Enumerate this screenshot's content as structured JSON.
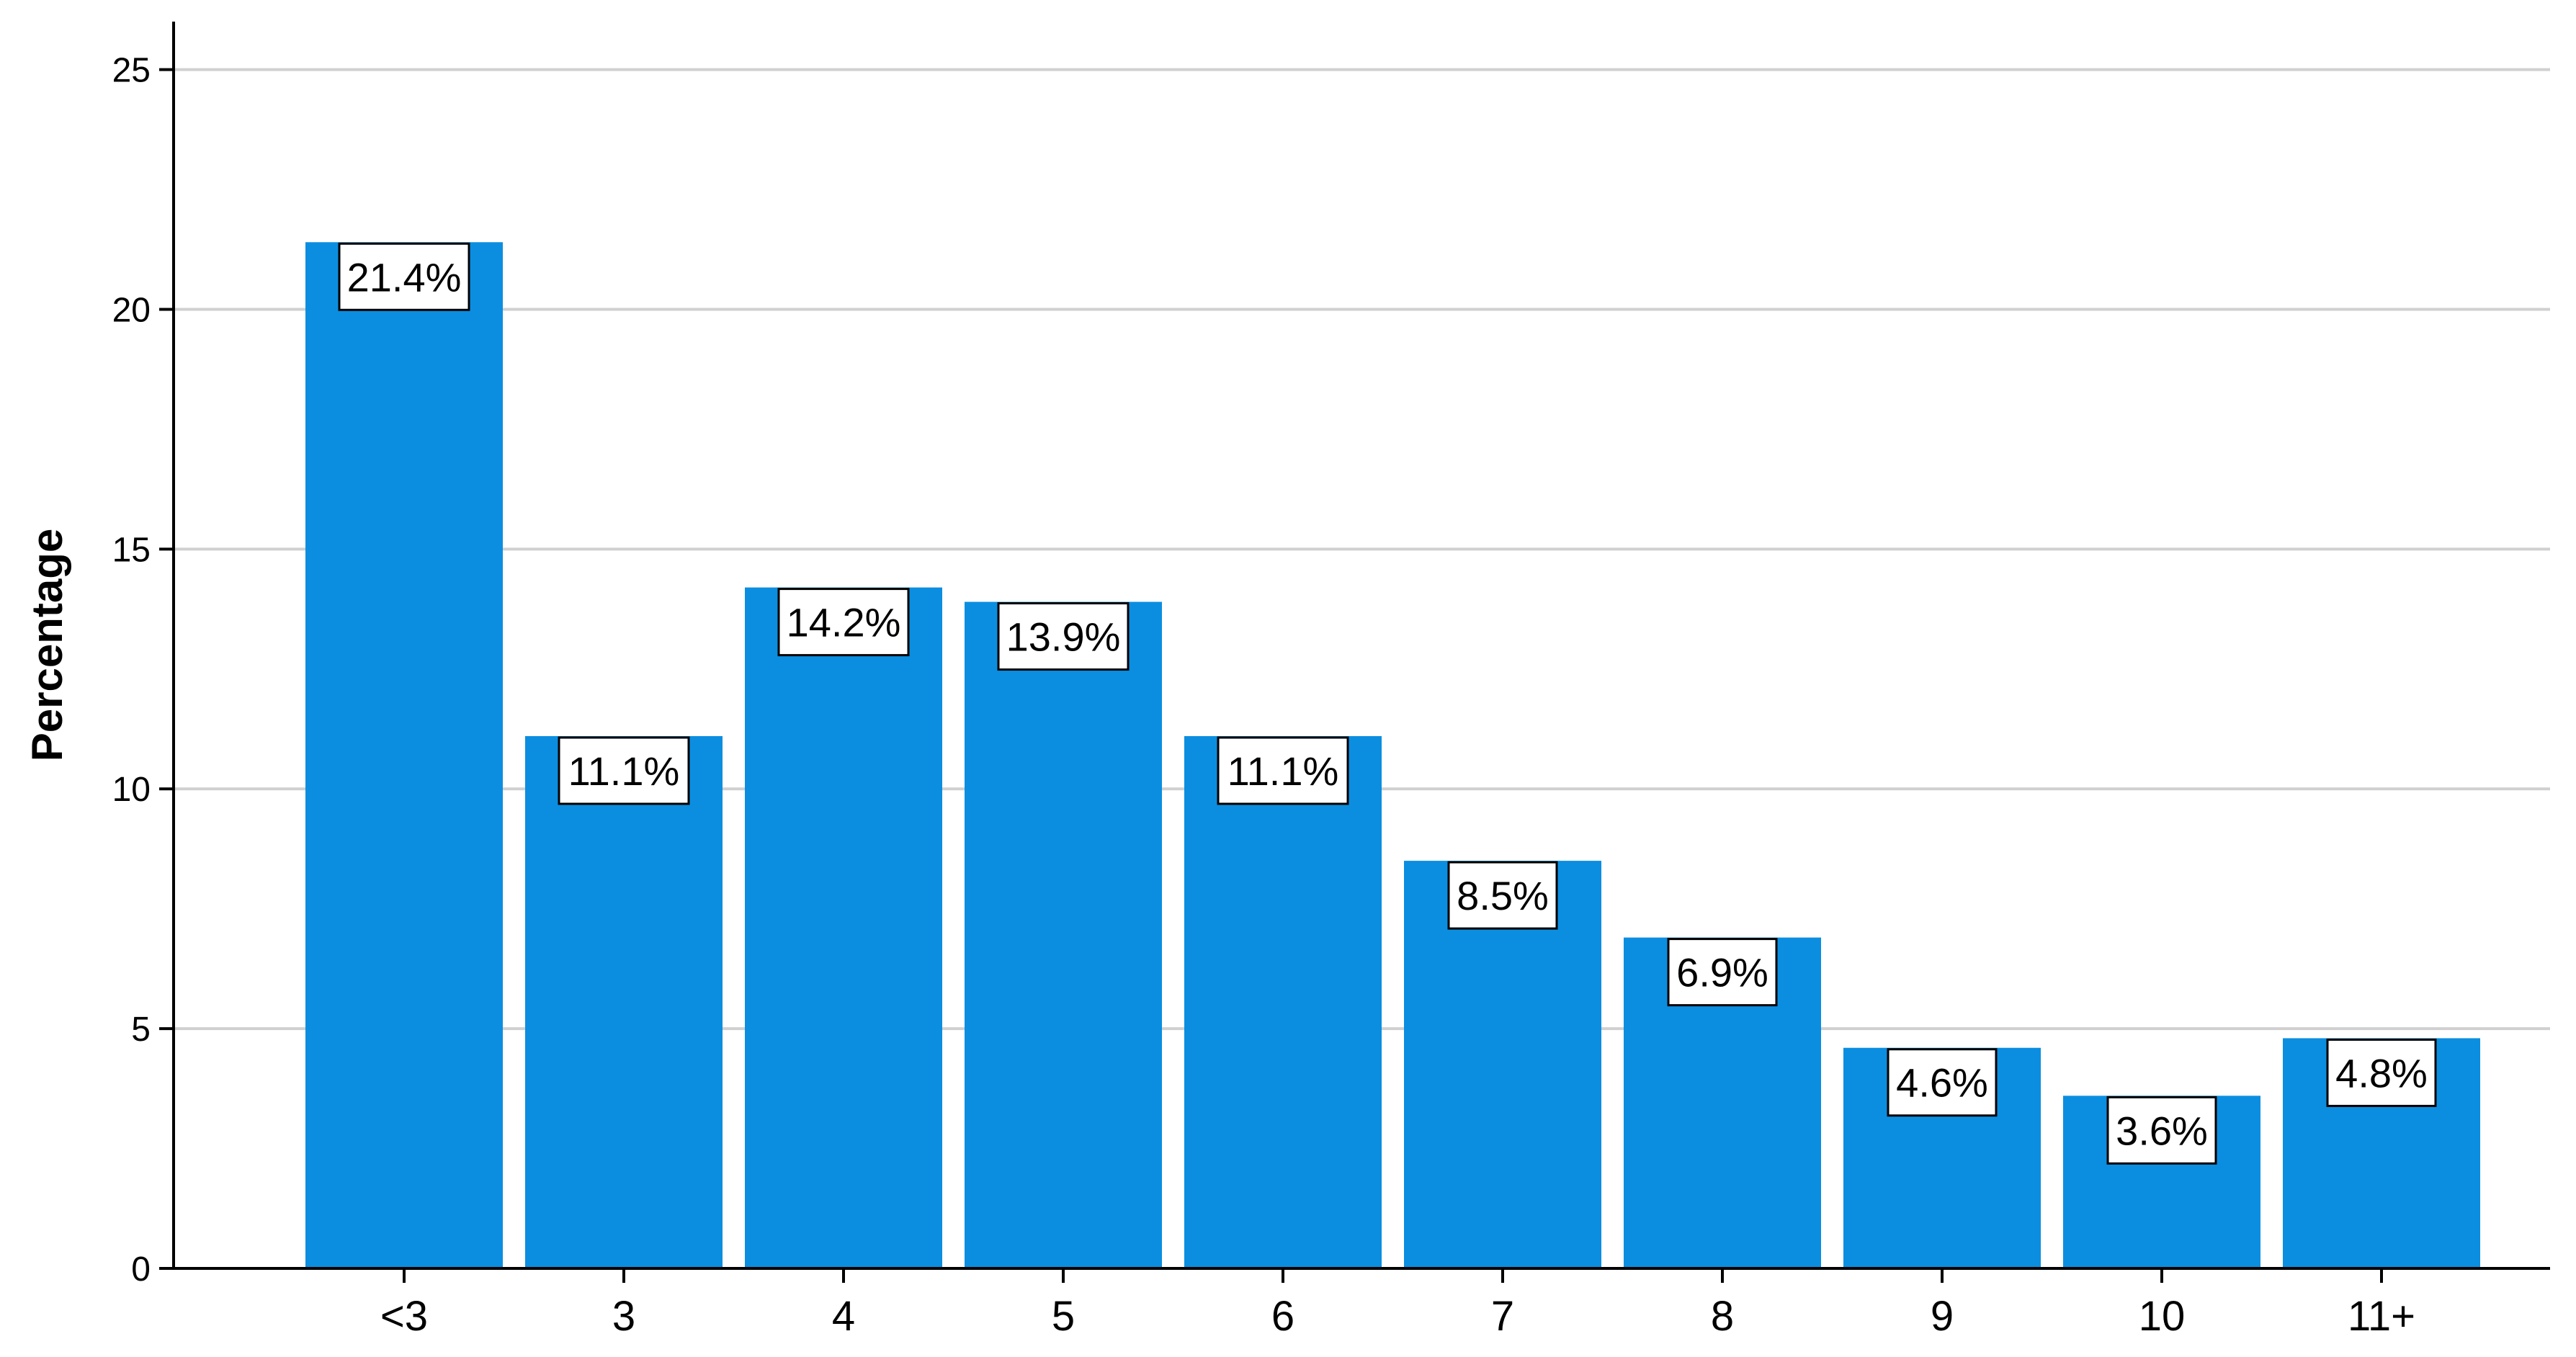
{
  "chart_data": {
    "type": "bar",
    "title": "",
    "xlabel": "",
    "ylabel": "Percentage",
    "categories": [
      "<3",
      "3",
      "4",
      "5",
      "6",
      "7",
      "8",
      "9",
      "10",
      "11+"
    ],
    "values": [
      21.4,
      11.1,
      14.2,
      13.9,
      11.1,
      8.5,
      6.9,
      4.6,
      3.6,
      4.8
    ],
    "data_labels": [
      "21.4%",
      "11.1%",
      "14.2%",
      "13.9%",
      "11.1%",
      "8.5%",
      "6.9%",
      "4.6%",
      "3.6%",
      "4.8%"
    ],
    "ylim": [
      0,
      26
    ],
    "yticks": [
      0,
      5,
      10,
      15,
      20,
      25
    ],
    "grid": true,
    "legend": "none",
    "colors": {
      "bar": "#0b8ee0",
      "gridline": "#d0d0d0",
      "axis": "#000000",
      "label_box": "#ffffff"
    }
  }
}
